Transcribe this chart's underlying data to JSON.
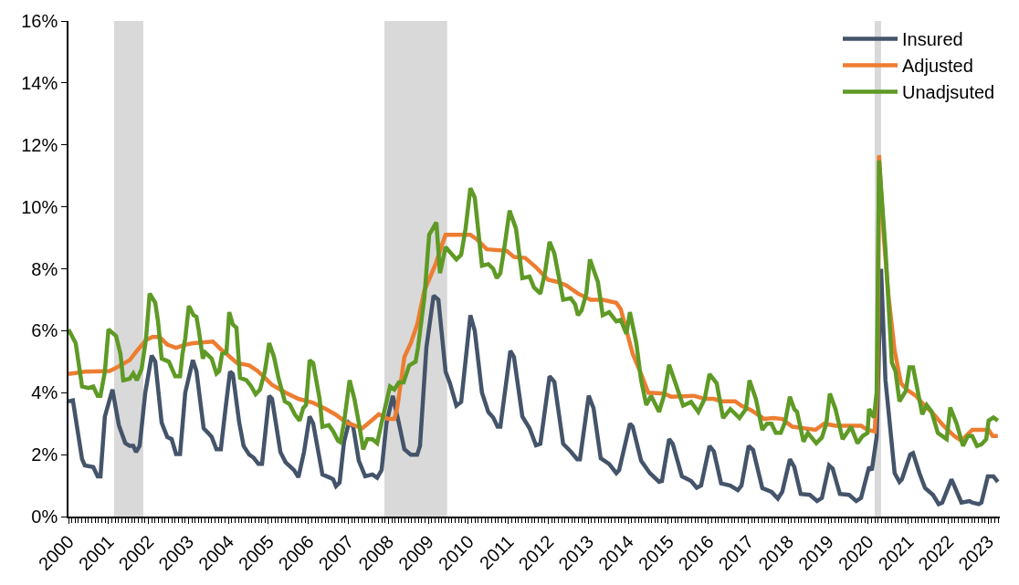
{
  "chart_data": {
    "type": "line",
    "xlim": [
      2000,
      2023.29
    ],
    "xticks": [
      {
        "value": 2000,
        "label": "2000"
      },
      {
        "value": 2001,
        "label": "2001"
      },
      {
        "value": 2002,
        "label": "2002"
      },
      {
        "value": 2003,
        "label": "2003"
      },
      {
        "value": 2004,
        "label": "2004"
      },
      {
        "value": 2005,
        "label": "2005"
      },
      {
        "value": 2006,
        "label": "2006"
      },
      {
        "value": 2007,
        "label": "2007"
      },
      {
        "value": 2008,
        "label": "2008"
      },
      {
        "value": 2009,
        "label": "2009"
      },
      {
        "value": 2010,
        "label": "2010"
      },
      {
        "value": 2011,
        "label": "2011"
      },
      {
        "value": 2012,
        "label": "2012"
      },
      {
        "value": 2013,
        "label": "2013"
      },
      {
        "value": 2014,
        "label": "2014"
      },
      {
        "value": 2015,
        "label": "2015"
      },
      {
        "value": 2016,
        "label": "2016"
      },
      {
        "value": 2017,
        "label": "2017"
      },
      {
        "value": 2018,
        "label": "2018"
      },
      {
        "value": 2019,
        "label": "2019"
      },
      {
        "value": 2020,
        "label": "2020"
      },
      {
        "value": 2021,
        "label": "2021"
      },
      {
        "value": 2022,
        "label": "2022"
      },
      {
        "value": 2023,
        "label": "2023"
      }
    ],
    "ylim": [
      0,
      16
    ],
    "yticks": [
      {
        "value": 0,
        "label": "0%"
      },
      {
        "value": 2,
        "label": "2%"
      },
      {
        "value": 4,
        "label": "4%"
      },
      {
        "value": 6,
        "label": "6%"
      },
      {
        "value": 8,
        "label": "8%"
      },
      {
        "value": 10,
        "label": "10%"
      },
      {
        "value": 12,
        "label": "12%"
      },
      {
        "value": 14,
        "label": "14%"
      },
      {
        "value": 16,
        "label": "16%"
      }
    ],
    "grid": false,
    "legend": "top right",
    "bands": [
      {
        "axis": "x",
        "from": 2001.14,
        "to": 2001.87,
        "color": "#d9d9d9"
      },
      {
        "axis": "x",
        "from": 2007.9,
        "to": 2009.47,
        "color": "#d9d9d9"
      },
      {
        "axis": "x",
        "from": 2020.16,
        "to": 2020.32,
        "color": "#d9d9d9"
      }
    ],
    "series": [
      {
        "name": "Insured",
        "color": "#44546a",
        "x": [
          2000.0,
          2000.11,
          2000.34,
          2000.41,
          2000.62,
          2000.73,
          2000.8,
          2000.91,
          2001.1,
          2001.26,
          2001.42,
          2001.53,
          2001.62,
          2001.69,
          2001.78,
          2001.92,
          2002.08,
          2002.17,
          2002.33,
          2002.47,
          2002.58,
          2002.69,
          2002.79,
          2002.92,
          2003.11,
          2003.2,
          2003.38,
          2003.49,
          2003.58,
          2003.7,
          2003.81,
          2003.93,
          2004.04,
          2004.11,
          2004.27,
          2004.38,
          2004.52,
          2004.63,
          2004.75,
          2004.84,
          2005.02,
          2005.09,
          2005.3,
          2005.43,
          2005.64,
          2005.75,
          2005.89,
          2006.03,
          2006.12,
          2006.35,
          2006.55,
          2006.62,
          2006.69,
          2006.78,
          2006.89,
          2007.01,
          2007.12,
          2007.26,
          2007.42,
          2007.6,
          2007.72,
          2007.83,
          2007.95,
          2008.11,
          2008.26,
          2008.4,
          2008.56,
          2008.72,
          2008.79,
          2008.95,
          2009.13,
          2009.25,
          2009.43,
          2009.54,
          2009.7,
          2009.82,
          2010.05,
          2010.16,
          2010.34,
          2010.5,
          2010.62,
          2010.73,
          2010.8,
          2011.05,
          2011.14,
          2011.35,
          2011.53,
          2011.69,
          2011.8,
          2012.03,
          2012.15,
          2012.37,
          2012.56,
          2012.72,
          2012.79,
          2013.01,
          2013.13,
          2013.31,
          2013.52,
          2013.7,
          2013.77,
          2014.04,
          2014.11,
          2014.32,
          2014.54,
          2014.77,
          2014.84,
          2015.02,
          2015.11,
          2015.34,
          2015.57,
          2015.71,
          2015.82,
          2016.03,
          2016.14,
          2016.32,
          2016.55,
          2016.74,
          2016.83,
          2017.01,
          2017.12,
          2017.35,
          2017.58,
          2017.74,
          2017.85,
          2018.04,
          2018.15,
          2018.31,
          2018.54,
          2018.72,
          2018.84,
          2019.02,
          2019.11,
          2019.29,
          2019.52,
          2019.7,
          2019.82,
          2020.02,
          2020.09,
          2020.21,
          2020.32,
          2020.43,
          2020.5,
          2020.66,
          2020.78,
          2020.84,
          2021.05,
          2021.12,
          2021.28,
          2021.42,
          2021.62,
          2021.76,
          2021.85,
          2022.08,
          2022.15,
          2022.33,
          2022.53,
          2022.6,
          2022.76,
          2022.83,
          2022.99,
          2023.13,
          2023.24
        ],
        "values": [
          3.72,
          3.75,
          1.85,
          1.65,
          1.6,
          1.3,
          1.3,
          3.23,
          4.1,
          2.95,
          2.37,
          2.28,
          2.28,
          2.08,
          2.28,
          4.0,
          5.2,
          5.0,
          3.03,
          2.57,
          2.5,
          2.02,
          2.02,
          4.0,
          5.05,
          4.7,
          2.85,
          2.7,
          2.57,
          2.17,
          2.17,
          3.52,
          4.68,
          4.6,
          3.03,
          2.28,
          2.0,
          1.9,
          1.7,
          1.7,
          3.9,
          3.8,
          2.08,
          1.75,
          1.5,
          1.27,
          2.08,
          3.23,
          3.0,
          1.36,
          1.25,
          1.2,
          0.98,
          1.1,
          2.4,
          3.03,
          2.9,
          1.8,
          1.3,
          1.36,
          1.25,
          1.5,
          3.0,
          3.9,
          3.03,
          2.17,
          2.0,
          2.0,
          2.28,
          5.45,
          7.13,
          7.0,
          4.68,
          4.3,
          3.58,
          3.7,
          6.5,
          6.0,
          4.0,
          3.37,
          3.2,
          2.9,
          2.9,
          5.35,
          5.15,
          3.23,
          2.85,
          2.3,
          2.35,
          4.53,
          4.35,
          2.35,
          2.1,
          1.85,
          1.85,
          3.9,
          3.5,
          1.88,
          1.7,
          1.4,
          1.5,
          3.0,
          2.9,
          1.8,
          1.4,
          1.12,
          1.15,
          2.5,
          2.35,
          1.3,
          1.15,
          0.93,
          1.0,
          2.28,
          2.1,
          1.07,
          1.0,
          0.85,
          1.0,
          2.28,
          2.15,
          0.92,
          0.8,
          0.58,
          0.8,
          1.85,
          1.6,
          0.73,
          0.7,
          0.5,
          0.6,
          1.65,
          1.55,
          0.73,
          0.7,
          0.5,
          0.6,
          1.6,
          1.5,
          2.57,
          8.0,
          4.4,
          3.5,
          1.4,
          1.12,
          1.2,
          2.0,
          2.05,
          1.4,
          0.92,
          0.7,
          0.4,
          0.45,
          1.2,
          1.0,
          0.45,
          0.5,
          0.45,
          0.4,
          0.45,
          1.3,
          1.3,
          1.12
        ]
      },
      {
        "name": "Adjusted",
        "color": "#ed7d31",
        "x": [
          2000.0,
          2000.41,
          2001.03,
          2001.19,
          2001.53,
          2001.71,
          2001.94,
          2002.1,
          2002.28,
          2002.47,
          2002.69,
          2002.92,
          2003.13,
          2003.61,
          2003.81,
          2004.0,
          2004.22,
          2004.52,
          2004.73,
          2004.91,
          2005.09,
          2005.43,
          2005.75,
          2006.12,
          2006.44,
          2006.67,
          2006.96,
          2007.35,
          2007.58,
          2007.76,
          2007.99,
          2008.15,
          2008.22,
          2008.4,
          2008.56,
          2008.72,
          2008.9,
          2009.18,
          2009.32,
          2009.43,
          2010.05,
          2010.21,
          2010.46,
          2010.96,
          2011.14,
          2011.42,
          2011.69,
          2011.99,
          2012.21,
          2012.44,
          2012.74,
          2013.06,
          2013.36,
          2013.7,
          2013.81,
          2013.97,
          2014.11,
          2014.32,
          2014.5,
          2014.89,
          2015.07,
          2015.64,
          2015.91,
          2016.14,
          2016.32,
          2016.67,
          2016.83,
          2017.08,
          2017.4,
          2017.63,
          2017.85,
          2018.1,
          2018.68,
          2018.9,
          2019.18,
          2019.82,
          2019.98,
          2020.16,
          2020.23,
          2020.27,
          2020.39,
          2020.5,
          2020.66,
          2020.82,
          2020.96,
          2021.19,
          2021.39,
          2021.62,
          2021.87,
          2022.15,
          2022.33,
          2022.6,
          2023.01,
          2023.11,
          2023.24
        ],
        "values": [
          4.6,
          4.68,
          4.7,
          4.8,
          5.05,
          5.35,
          5.7,
          5.8,
          5.8,
          5.55,
          5.45,
          5.55,
          5.6,
          5.65,
          5.4,
          5.2,
          4.95,
          4.88,
          4.7,
          4.48,
          4.25,
          4.0,
          3.8,
          3.67,
          3.47,
          3.3,
          3.03,
          2.85,
          3.1,
          3.3,
          3.15,
          3.15,
          3.5,
          5.15,
          5.6,
          6.2,
          7.3,
          8.15,
          8.7,
          9.1,
          9.1,
          8.95,
          8.63,
          8.58,
          8.38,
          8.35,
          8.05,
          7.65,
          7.58,
          7.47,
          7.2,
          7.0,
          7.0,
          6.9,
          6.7,
          5.93,
          5.25,
          4.6,
          4.0,
          3.97,
          3.87,
          3.9,
          3.8,
          3.8,
          3.72,
          3.72,
          3.58,
          3.43,
          3.15,
          3.18,
          3.15,
          2.9,
          2.8,
          3.0,
          2.93,
          2.93,
          2.8,
          2.75,
          4.2,
          11.67,
          9.0,
          7.2,
          5.35,
          4.3,
          4.1,
          3.9,
          3.6,
          3.33,
          2.95,
          2.6,
          2.45,
          2.8,
          2.8,
          2.6,
          2.6
        ]
      },
      {
        "name": "Unadjsuted",
        "color": "#5e9a25",
        "x": [
          2000.0,
          2000.18,
          2000.34,
          2000.5,
          2000.62,
          2000.73,
          2000.8,
          2000.91,
          2001.0,
          2001.19,
          2001.3,
          2001.37,
          2001.53,
          2001.62,
          2001.71,
          2001.83,
          2001.94,
          2002.03,
          2002.17,
          2002.24,
          2002.33,
          2002.51,
          2002.67,
          2002.79,
          2002.85,
          2002.92,
          2003.01,
          2003.13,
          2003.2,
          2003.26,
          2003.36,
          2003.42,
          2003.58,
          2003.7,
          2003.77,
          2003.84,
          2003.95,
          2004.02,
          2004.11,
          2004.2,
          2004.29,
          2004.45,
          2004.57,
          2004.68,
          2004.79,
          2004.91,
          2005.02,
          2005.14,
          2005.25,
          2005.41,
          2005.53,
          2005.66,
          2005.78,
          2005.87,
          2005.94,
          2006.03,
          2006.12,
          2006.28,
          2006.35,
          2006.51,
          2006.62,
          2006.74,
          2006.8,
          2006.89,
          2007.03,
          2007.15,
          2007.26,
          2007.37,
          2007.47,
          2007.6,
          2007.72,
          2007.83,
          2008.04,
          2008.15,
          2008.26,
          2008.38,
          2008.52,
          2008.68,
          2008.74,
          2008.9,
          2009.02,
          2009.2,
          2009.29,
          2009.43,
          2009.7,
          2009.82,
          2009.93,
          2010.05,
          2010.16,
          2010.34,
          2010.5,
          2010.62,
          2010.71,
          2010.8,
          2010.91,
          2011.03,
          2011.19,
          2011.35,
          2011.53,
          2011.64,
          2011.8,
          2011.92,
          2012.03,
          2012.15,
          2012.37,
          2012.56,
          2012.67,
          2012.74,
          2012.83,
          2012.95,
          2013.04,
          2013.24,
          2013.36,
          2013.52,
          2013.7,
          2013.81,
          2013.95,
          2014.04,
          2014.2,
          2014.32,
          2014.45,
          2014.57,
          2014.77,
          2014.89,
          2015.02,
          2015.18,
          2015.37,
          2015.57,
          2015.75,
          2015.91,
          2016.03,
          2016.21,
          2016.37,
          2016.55,
          2016.78,
          2016.94,
          2017.03,
          2017.19,
          2017.35,
          2017.47,
          2017.58,
          2017.69,
          2017.81,
          2017.92,
          2018.04,
          2018.15,
          2018.22,
          2018.38,
          2018.49,
          2018.7,
          2018.84,
          2018.95,
          2019.04,
          2019.18,
          2019.36,
          2019.57,
          2019.73,
          2019.86,
          2019.98,
          2020.02,
          2020.14,
          2020.21,
          2020.27,
          2020.43,
          2020.59,
          2020.68,
          2020.78,
          2020.94,
          2021.03,
          2021.12,
          2021.23,
          2021.35,
          2021.46,
          2021.58,
          2021.74,
          2021.96,
          2022.05,
          2022.21,
          2022.37,
          2022.49,
          2022.6,
          2022.72,
          2022.83,
          2022.95,
          2023.01,
          2023.13,
          2023.24
        ],
        "values": [
          6.04,
          5.6,
          4.2,
          4.15,
          4.2,
          3.9,
          3.9,
          4.68,
          6.04,
          5.83,
          5.25,
          4.4,
          4.45,
          4.62,
          4.4,
          4.77,
          5.75,
          7.2,
          6.9,
          6.3,
          5.1,
          5.0,
          4.53,
          4.53,
          5.25,
          5.75,
          6.8,
          6.5,
          6.45,
          6.0,
          5.1,
          5.3,
          5.1,
          4.62,
          4.7,
          5.25,
          5.3,
          6.6,
          6.2,
          6.1,
          4.48,
          4.4,
          4.2,
          3.95,
          4.1,
          4.68,
          5.6,
          5.15,
          4.48,
          3.72,
          3.63,
          3.3,
          3.1,
          3.5,
          3.6,
          5.05,
          4.95,
          3.8,
          2.9,
          2.95,
          2.75,
          2.45,
          2.4,
          3.03,
          4.4,
          3.8,
          3.03,
          2.17,
          2.5,
          2.5,
          2.37,
          3.03,
          4.2,
          4.1,
          4.33,
          4.33,
          4.88,
          5.0,
          5.45,
          7.07,
          9.1,
          9.5,
          7.86,
          8.7,
          8.3,
          8.45,
          9.3,
          10.6,
          10.3,
          8.1,
          8.15,
          8.0,
          7.7,
          7.86,
          8.77,
          9.88,
          9.3,
          7.7,
          7.75,
          7.4,
          7.2,
          7.9,
          8.87,
          8.5,
          7.0,
          7.05,
          6.85,
          6.5,
          6.65,
          7.2,
          8.3,
          7.57,
          6.5,
          6.6,
          6.3,
          6.35,
          5.9,
          6.6,
          5.6,
          4.4,
          3.6,
          3.9,
          3.38,
          3.9,
          4.9,
          4.3,
          3.58,
          3.7,
          3.38,
          3.8,
          4.6,
          4.3,
          3.18,
          3.47,
          3.18,
          3.47,
          4.4,
          3.8,
          2.8,
          3.0,
          3.0,
          2.7,
          2.7,
          3.05,
          3.87,
          3.47,
          3.38,
          2.42,
          2.7,
          2.37,
          2.55,
          3.0,
          3.97,
          3.47,
          2.5,
          2.9,
          2.37,
          2.6,
          2.7,
          3.47,
          3.2,
          4.0,
          11.5,
          8.63,
          4.97,
          4.7,
          3.72,
          4.05,
          4.82,
          4.82,
          4.1,
          3.3,
          3.6,
          3.4,
          2.7,
          2.5,
          3.52,
          3.0,
          2.28,
          2.6,
          2.6,
          2.28,
          2.33,
          2.5,
          3.1,
          3.2,
          3.1
        ]
      }
    ]
  }
}
